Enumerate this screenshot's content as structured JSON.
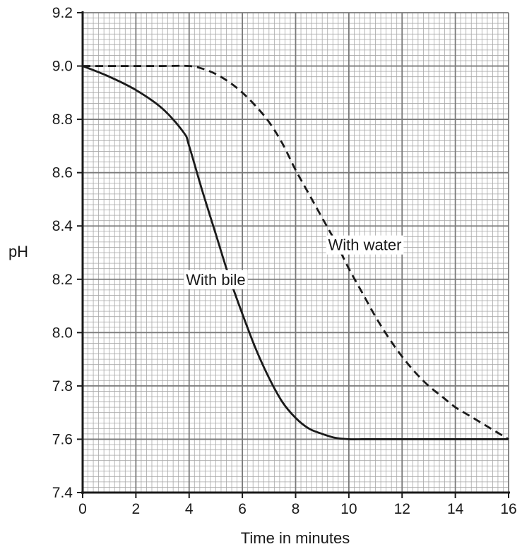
{
  "chart_data": {
    "type": "line",
    "xlabel": "Time in minutes",
    "ylabel": "pH",
    "xlim": [
      0,
      16
    ],
    "ylim": [
      7.4,
      9.2
    ],
    "x_ticks": [
      "0",
      "2",
      "4",
      "6",
      "8",
      "10",
      "12",
      "14",
      "16"
    ],
    "y_ticks": [
      "7.4",
      "7.6",
      "7.8",
      "8.0",
      "8.2",
      "8.4",
      "8.6",
      "8.8",
      "9.0",
      "9.2"
    ],
    "grid": true,
    "series": [
      {
        "name": "With bile",
        "line_style": "solid",
        "x": [
          0,
          1,
          2,
          3,
          3.8,
          4,
          4.5,
          5,
          5.5,
          6,
          6.5,
          7,
          7.5,
          8,
          8.5,
          9,
          9.5,
          10,
          10.5,
          11,
          12,
          13,
          14,
          15,
          16
        ],
        "y": [
          9.0,
          8.96,
          8.91,
          8.84,
          8.75,
          8.7,
          8.53,
          8.37,
          8.21,
          8.07,
          7.94,
          7.83,
          7.74,
          7.68,
          7.64,
          7.62,
          7.605,
          7.6,
          7.6,
          7.6,
          7.6,
          7.6,
          7.6,
          7.6,
          7.6
        ]
      },
      {
        "name": "With water",
        "line_style": "dashed",
        "x": [
          0,
          1,
          2,
          3,
          4,
          4.5,
          5,
          5.5,
          6,
          6.5,
          7,
          7.5,
          8,
          8.5,
          9,
          9.5,
          10,
          10.5,
          11,
          11.5,
          12,
          12.5,
          13,
          13.5,
          14,
          14.5,
          15,
          15.5,
          16
        ],
        "y": [
          9.0,
          9.0,
          9.0,
          9.0,
          9.0,
          8.99,
          8.97,
          8.94,
          8.9,
          8.85,
          8.79,
          8.71,
          8.61,
          8.52,
          8.43,
          8.34,
          8.24,
          8.15,
          8.06,
          7.98,
          7.91,
          7.85,
          7.8,
          7.76,
          7.72,
          7.69,
          7.66,
          7.63,
          7.6
        ]
      }
    ],
    "annotations": [
      {
        "text": "With bile",
        "x": 5.0,
        "y": 8.2
      },
      {
        "text": "With water",
        "x": 10.6,
        "y": 8.33
      }
    ]
  }
}
